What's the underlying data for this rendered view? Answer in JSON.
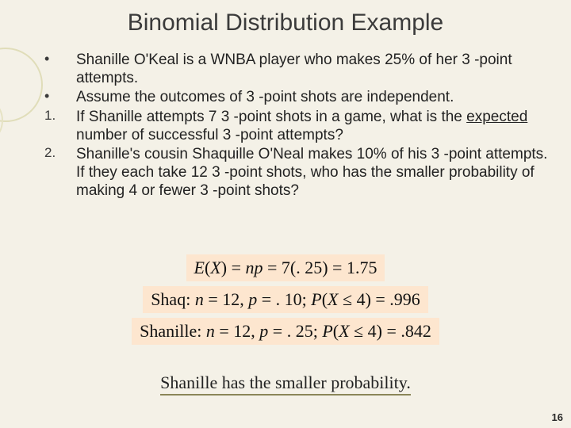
{
  "slide": {
    "background": "#f4f1e7",
    "accent_fill": "#fde6cf",
    "circle_stroke": "#e0ddb9",
    "title": "Binomial Distribution Example",
    "title_color": "#3b3b3b",
    "title_fontsize": 30,
    "body_fontsize": 19,
    "formula_fontsize": 22,
    "page_number": "16"
  },
  "items": [
    {
      "marker": "•",
      "text": "Shanille O'Keal is a WNBA player who makes 25% of her 3 -point attempts."
    },
    {
      "marker": "•",
      "text": "Assume the outcomes of 3 -point shots are independent."
    },
    {
      "marker": "1.",
      "text": "If Shanille attempts 7 3 -point shots in a game, what is the expected number of successful 3 -point attempts?",
      "underline_word": "expected"
    },
    {
      "marker": "2.",
      "text": "Shanille's cousin Shaquille O'Neal makes 10% of his 3 -point attempts.  If they each take 12 3 -point shots, who has the smaller probability of making 4 or fewer 3 -point shots?"
    }
  ],
  "formulas": {
    "f1_prefix": "E",
    "f1_paren_open": "(",
    "f1_x": "X",
    "f1_paren_close": ")",
    "f1_eq1": " = ",
    "f1_np": "np",
    "f1_eq2": " = 7(. 25) = 1.75",
    "f2_label": "Shaq: ",
    "f2_n": "n",
    "f2_neq": " = 12, ",
    "f2_p": "p",
    "f2_peq": " = . 10; ",
    "f2_P": "P",
    "f2_open": "(",
    "f2_X": "X",
    "f2_cond": " ≤ 4) = .996",
    "f3_label": "Shanille: ",
    "f3_n": "n",
    "f3_neq": " = 12, ",
    "f3_p": "p",
    "f3_peq": " = . 25; ",
    "f3_P": "P",
    "f3_open": "(",
    "f3_X": "X",
    "f3_cond": " ≤ 4) = .842"
  },
  "conclusion": "Shanille has the smaller probability."
}
